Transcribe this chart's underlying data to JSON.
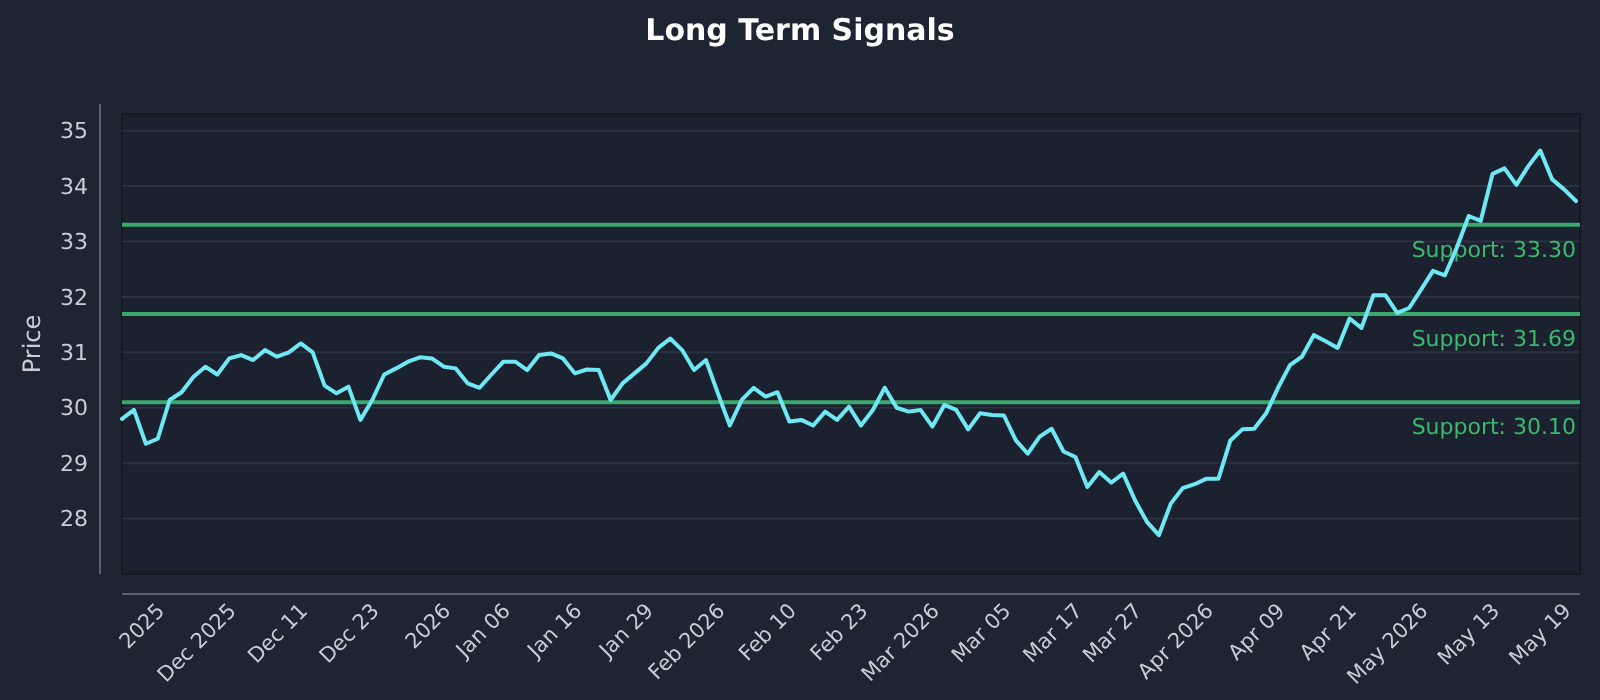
{
  "chart_data": {
    "type": "line",
    "title": "Long Term Signals",
    "ylabel": "Price",
    "ylim": [
      27,
      35.3
    ],
    "yticks": [
      28,
      29,
      30,
      31,
      32,
      33,
      34,
      35
    ],
    "categories": [
      null,
      null,
      null,
      "2025",
      null,
      null,
      null,
      null,
      null,
      "Dec 2025",
      null,
      null,
      null,
      null,
      null,
      "Dec 11",
      null,
      null,
      null,
      null,
      null,
      "Dec 23",
      null,
      null,
      null,
      null,
      null,
      "2026",
      null,
      null,
      null,
      null,
      "Jan 06",
      null,
      null,
      null,
      null,
      null,
      "Jan 16",
      null,
      null,
      null,
      null,
      null,
      "Jan 29",
      null,
      null,
      null,
      null,
      null,
      "Feb 2026",
      null,
      null,
      null,
      null,
      null,
      "Feb 10",
      null,
      null,
      null,
      null,
      null,
      "Feb 23",
      null,
      null,
      null,
      null,
      null,
      "Mar 2026",
      null,
      null,
      null,
      null,
      null,
      "Mar 05",
      null,
      null,
      null,
      null,
      null,
      "Mar 17",
      null,
      null,
      null,
      null,
      "Mar 27",
      null,
      null,
      null,
      null,
      null,
      "Apr 2026",
      null,
      null,
      null,
      null,
      null,
      "Apr 09",
      null,
      null,
      null,
      null,
      null,
      "Apr 21",
      null,
      null,
      null,
      null,
      null,
      "May 2026",
      null,
      null,
      null,
      null,
      null,
      "May 13",
      null,
      null,
      null,
      null,
      null,
      "May 19",
      null
    ],
    "grid": "y",
    "marker": "none",
    "line_style": "solid",
    "series": [
      {
        "color": "#6ee8f2",
        "values": [
          29.8,
          29.96,
          29.35,
          29.44,
          30.14,
          30.28,
          30.56,
          30.74,
          30.6,
          30.89,
          30.95,
          30.86,
          31.04,
          30.92,
          31.0,
          31.16,
          31.0,
          30.4,
          30.26,
          30.38,
          29.78,
          30.14,
          30.6,
          30.71,
          30.83,
          30.91,
          30.89,
          30.74,
          30.71,
          30.44,
          30.36,
          30.6,
          30.83,
          30.83,
          30.68,
          30.95,
          30.98,
          30.89,
          30.62,
          30.69,
          30.68,
          30.14,
          30.44,
          30.62,
          30.8,
          31.08,
          31.25,
          31.04,
          30.68,
          30.86,
          30.26,
          29.68,
          30.14,
          30.36,
          30.2,
          30.28,
          29.75,
          29.78,
          29.68,
          29.93,
          29.78,
          30.02,
          29.68,
          29.96,
          30.36,
          30.0,
          29.93,
          29.96,
          29.66,
          30.05,
          29.96,
          29.61,
          29.9,
          29.87,
          29.86,
          29.41,
          29.17,
          29.48,
          29.62,
          29.21,
          29.11,
          28.57,
          28.84,
          28.65,
          28.81,
          28.33,
          27.94,
          27.7,
          28.27,
          28.55,
          28.62,
          28.72,
          28.72,
          29.41,
          29.61,
          29.62,
          29.9,
          30.36,
          30.77,
          30.92,
          31.31,
          31.2,
          31.08,
          31.61,
          31.44,
          32.03,
          32.03,
          31.71,
          31.8,
          32.13,
          32.47,
          32.39,
          32.89,
          33.46,
          33.37,
          34.22,
          34.32,
          34.02,
          34.36,
          34.64,
          34.12,
          33.94,
          33.73
        ]
      }
    ],
    "ref_lines": [
      {
        "axis": "y",
        "value": 33.3,
        "label": "Support: 33.30",
        "color": "#3aa86b"
      },
      {
        "axis": "y",
        "value": 31.69,
        "label": "Support: 31.69",
        "color": "#3aa86b"
      },
      {
        "axis": "y",
        "value": 30.1,
        "label": "Support: 30.10",
        "color": "#3aa86b"
      }
    ]
  }
}
